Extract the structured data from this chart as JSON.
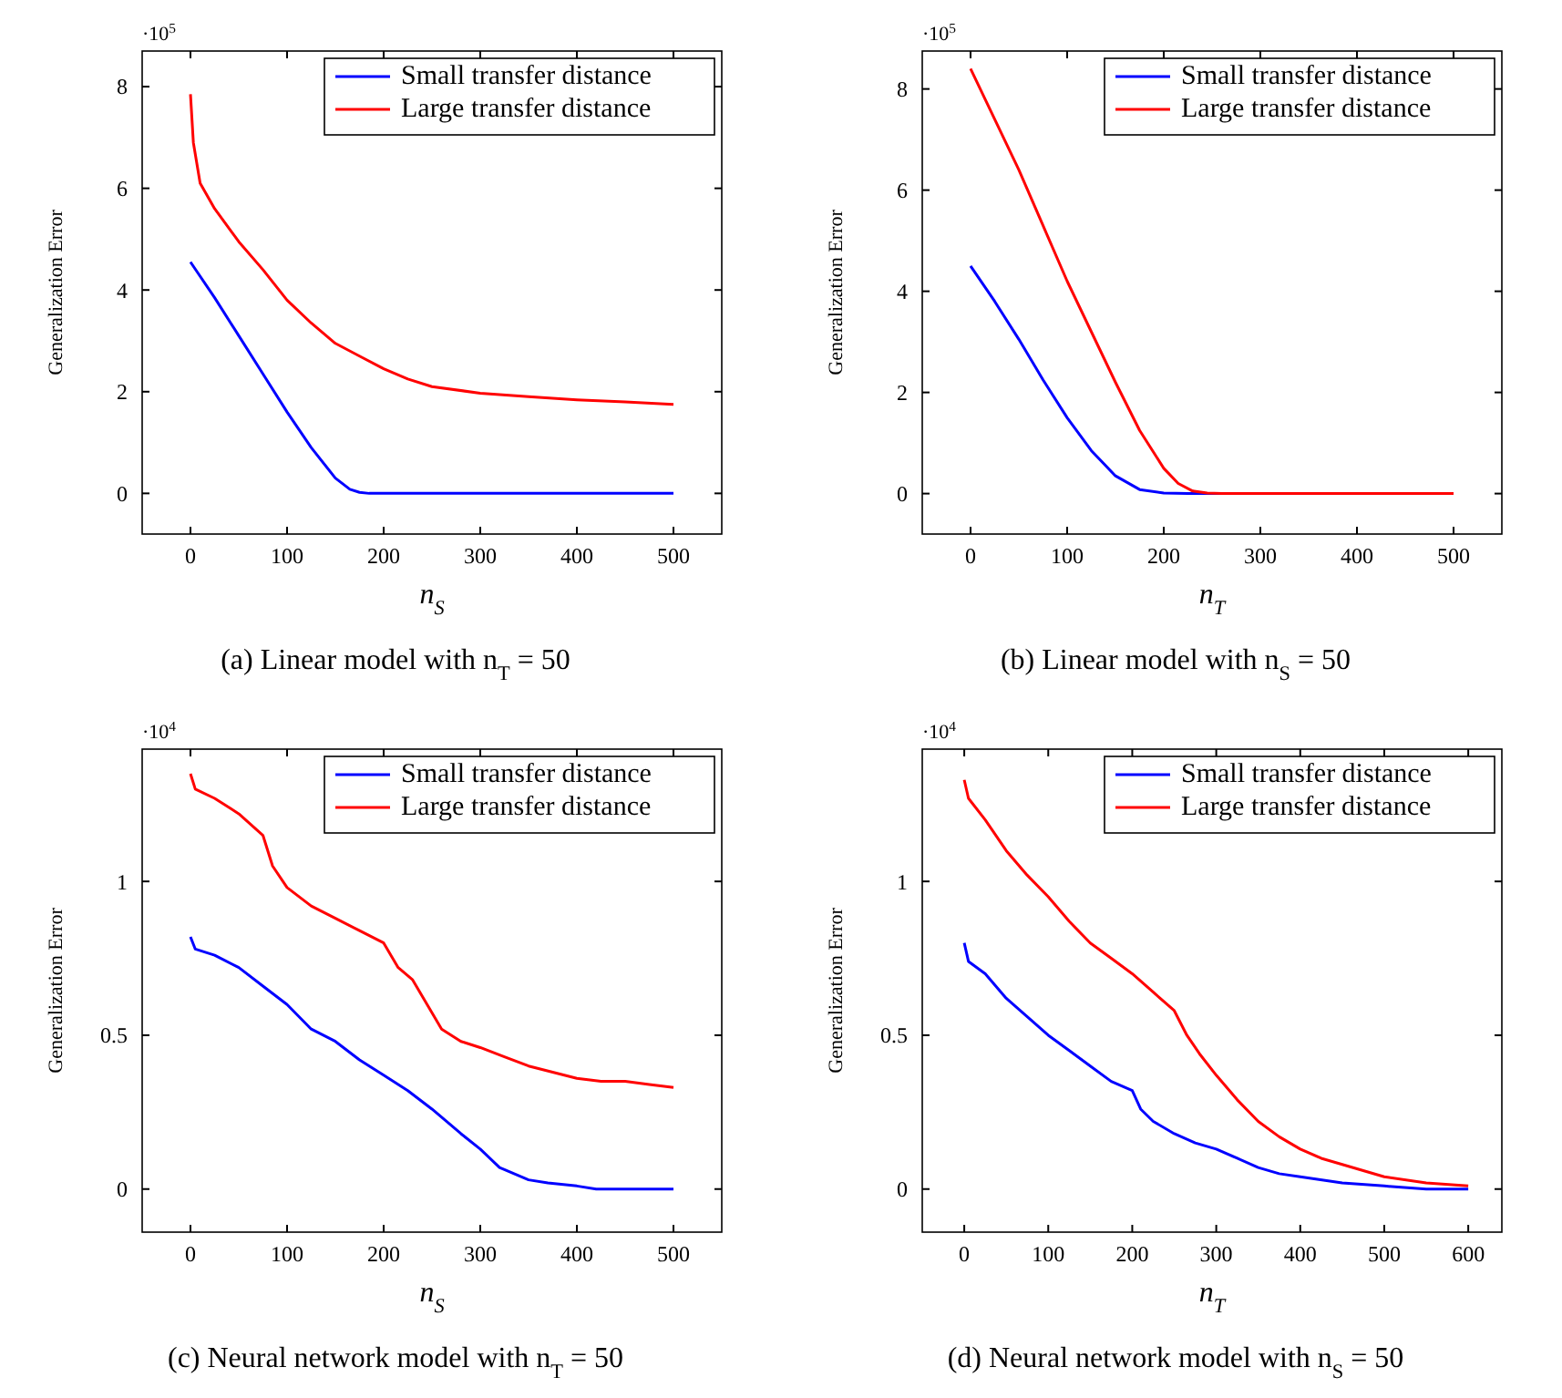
{
  "chart_data": [
    {
      "type": "line",
      "title": "(a) Linear model with n$_{T}$ = 50",
      "xlabel": "n$_{S}$",
      "ylabel": "Generalization Error",
      "annotations": [
        "·10$^{5}$"
      ],
      "xlim": [
        -50,
        550
      ],
      "ylim": [
        -0.8,
        8.7
      ],
      "xticks": [
        0,
        100,
        200,
        300,
        400,
        500
      ],
      "yticks": [
        0,
        2,
        4,
        6,
        8
      ],
      "legend": "top right",
      "grid": false,
      "line_style": "solid",
      "marker": "none",
      "series": [
        {
          "name": "Small transfer distance",
          "color": "#0000ff",
          "x": [
            0,
            25,
            50,
            75,
            100,
            125,
            150,
            165,
            175,
            185,
            200,
            250,
            300,
            400,
            500
          ],
          "values": [
            4.55,
            3.85,
            3.1,
            2.35,
            1.6,
            0.9,
            0.3,
            0.08,
            0.02,
            0,
            0,
            0,
            0,
            0,
            0
          ]
        },
        {
          "name": "Large transfer distance",
          "color": "#ff0000",
          "x": [
            0,
            3,
            10,
            25,
            50,
            75,
            100,
            125,
            150,
            175,
            200,
            225,
            250,
            300,
            350,
            400,
            450,
            500
          ],
          "values": [
            7.85,
            6.9,
            6.1,
            5.6,
            4.95,
            4.4,
            3.8,
            3.35,
            2.95,
            2.7,
            2.45,
            2.25,
            2.1,
            1.97,
            1.9,
            1.84,
            1.8,
            1.75
          ]
        }
      ]
    },
    {
      "type": "line",
      "title": "(b) Linear model with n$_{S}$ = 50",
      "xlabel": "n$_{T}$",
      "ylabel": "Generalization Error",
      "annotations": [
        "·10$^{5}$"
      ],
      "xlim": [
        -50,
        550
      ],
      "ylim": [
        -0.8,
        8.75
      ],
      "xticks": [
        0,
        100,
        200,
        300,
        400,
        500
      ],
      "yticks": [
        0,
        2,
        4,
        6,
        8
      ],
      "legend": "top right",
      "grid": false,
      "line_style": "solid",
      "marker": "none",
      "series": [
        {
          "name": "Small transfer distance",
          "color": "#0000ff",
          "x": [
            0,
            25,
            50,
            75,
            100,
            125,
            150,
            175,
            200,
            225,
            250,
            300
          ],
          "values": [
            4.5,
            3.8,
            3.05,
            2.25,
            1.5,
            0.85,
            0.35,
            0.08,
            0.01,
            0,
            0,
            0
          ]
        },
        {
          "name": "Large transfer distance",
          "color": "#ff0000",
          "x": [
            0,
            25,
            50,
            75,
            100,
            125,
            150,
            175,
            200,
            215,
            230,
            245,
            260,
            300,
            400,
            500
          ],
          "values": [
            8.4,
            7.4,
            6.4,
            5.3,
            4.2,
            3.2,
            2.2,
            1.25,
            0.5,
            0.2,
            0.05,
            0.01,
            0,
            0,
            0,
            0
          ]
        }
      ]
    },
    {
      "type": "line",
      "title": "(c) Neural network model with n$_{T}$ = 50",
      "xlabel": "n$_{S}$",
      "ylabel": "Generalization Error",
      "annotations": [
        "·10$^{4}$"
      ],
      "xlim": [
        -50,
        550
      ],
      "ylim": [
        -0.14,
        1.43
      ],
      "xticks": [
        0,
        100,
        200,
        300,
        400,
        500
      ],
      "yticks": [
        0,
        0.5,
        1
      ],
      "legend": "top right",
      "grid": false,
      "line_style": "solid",
      "marker": "none",
      "series": [
        {
          "name": "Small transfer distance",
          "color": "#0000ff",
          "x": [
            0,
            5,
            25,
            50,
            75,
            100,
            125,
            150,
            175,
            200,
            225,
            250,
            280,
            300,
            320,
            350,
            370,
            400,
            420,
            450,
            500
          ],
          "values": [
            0.82,
            0.78,
            0.76,
            0.72,
            0.66,
            0.6,
            0.52,
            0.48,
            0.42,
            0.37,
            0.32,
            0.26,
            0.18,
            0.13,
            0.07,
            0.03,
            0.02,
            0.01,
            0,
            0,
            0
          ]
        },
        {
          "name": "Large transfer distance",
          "color": "#ff0000",
          "x": [
            0,
            5,
            25,
            50,
            75,
            85,
            100,
            125,
            150,
            175,
            200,
            215,
            230,
            245,
            260,
            280,
            300,
            325,
            350,
            375,
            400,
            425,
            450,
            475,
            500
          ],
          "values": [
            1.35,
            1.3,
            1.27,
            1.22,
            1.15,
            1.05,
            0.98,
            0.92,
            0.88,
            0.84,
            0.8,
            0.72,
            0.68,
            0.6,
            0.52,
            0.48,
            0.46,
            0.43,
            0.4,
            0.38,
            0.36,
            0.35,
            0.35,
            0.34,
            0.33
          ]
        }
      ]
    },
    {
      "type": "line",
      "title": "(d) Neural network model with n$_{S}$ = 50",
      "xlabel": "n$_{T}$",
      "ylabel": "Generalization Error",
      "annotations": [
        "·10$^{4}$"
      ],
      "xlim": [
        -50,
        640
      ],
      "ylim": [
        -0.14,
        1.43
      ],
      "xticks": [
        0,
        100,
        200,
        300,
        400,
        500,
        600
      ],
      "yticks": [
        0,
        0.5,
        1
      ],
      "legend": "top right",
      "grid": false,
      "line_style": "solid",
      "marker": "none",
      "series": [
        {
          "name": "Small transfer distance",
          "color": "#0000ff",
          "x": [
            0,
            5,
            25,
            50,
            75,
            100,
            125,
            150,
            175,
            200,
            210,
            225,
            250,
            275,
            300,
            325,
            350,
            375,
            400,
            450,
            500,
            550,
            600
          ],
          "values": [
            0.8,
            0.74,
            0.7,
            0.62,
            0.56,
            0.5,
            0.45,
            0.4,
            0.35,
            0.32,
            0.26,
            0.22,
            0.18,
            0.15,
            0.13,
            0.1,
            0.07,
            0.05,
            0.04,
            0.02,
            0.01,
            0,
            0
          ]
        },
        {
          "name": "Large transfer distance",
          "color": "#ff0000",
          "x": [
            0,
            5,
            25,
            50,
            75,
            100,
            125,
            150,
            175,
            200,
            225,
            250,
            265,
            280,
            300,
            325,
            350,
            375,
            400,
            425,
            450,
            500,
            550,
            600
          ],
          "values": [
            1.33,
            1.27,
            1.2,
            1.1,
            1.02,
            0.95,
            0.87,
            0.8,
            0.75,
            0.7,
            0.64,
            0.58,
            0.5,
            0.44,
            0.37,
            0.29,
            0.22,
            0.17,
            0.13,
            0.1,
            0.08,
            0.04,
            0.02,
            0.01
          ]
        }
      ]
    }
  ]
}
